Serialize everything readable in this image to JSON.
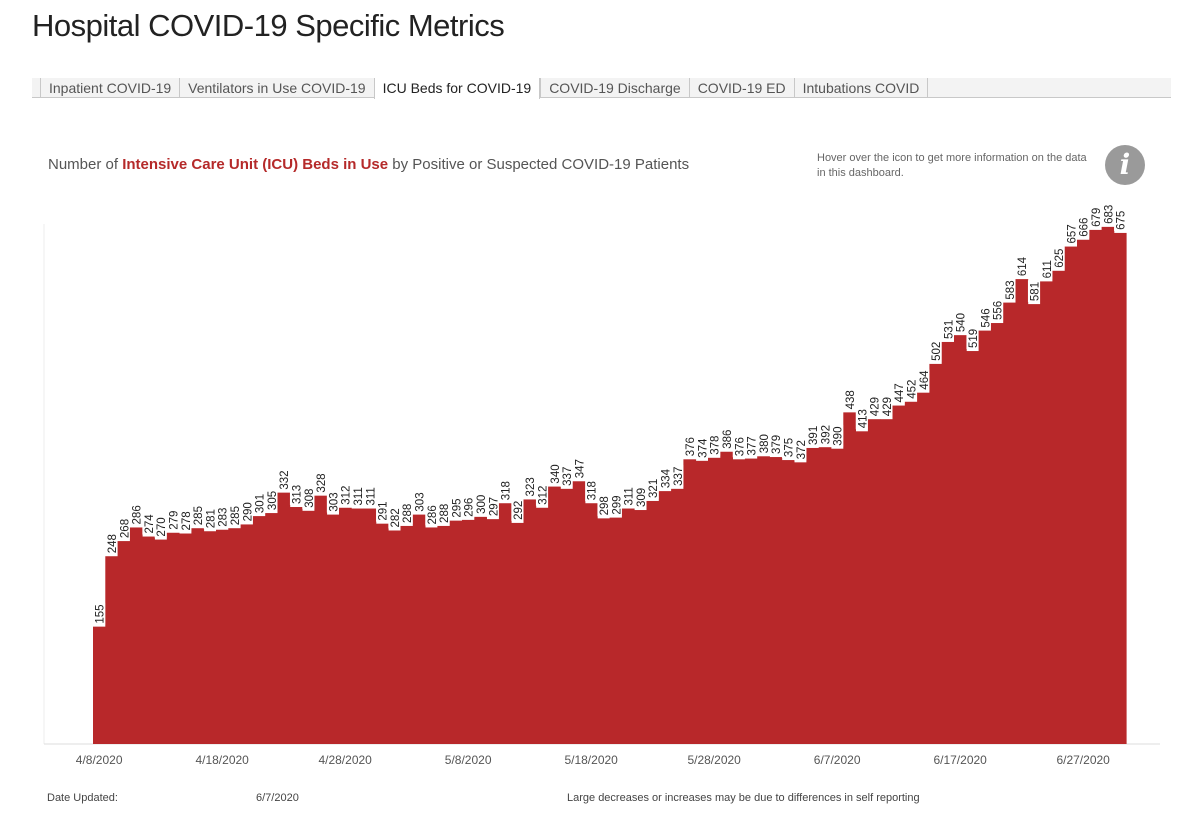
{
  "header": {
    "title": "Hospital COVID-19 Specific Metrics"
  },
  "tabs": [
    {
      "label": "Inpatient COVID-19",
      "active": false
    },
    {
      "label": "Ventilators in Use COVID-19",
      "active": false
    },
    {
      "label": "ICU Beds for COVID-19",
      "active": true
    },
    {
      "label": "COVID-19 Discharge",
      "active": false
    },
    {
      "label": "COVID-19 ED",
      "active": false
    },
    {
      "label": "Intubations COVID",
      "active": false
    }
  ],
  "subtitle": {
    "prefix": "Number of ",
    "highlight": "Intensive Care Unit (ICU) Beds in Use",
    "suffix": " by Positive or Suspected COVID-19 Patients"
  },
  "info": {
    "note": "Hover over the icon to get more information on the data in this dashboard.",
    "icon": "info-icon",
    "icon_glyph": "i"
  },
  "footer": {
    "date_updated_label": "Date Updated:",
    "date_updated_value": "6/7/2020",
    "note": "Large decreases or increases may be due to differences in self reporting"
  },
  "colors": {
    "bar": "#b8282a",
    "highlight_text": "#b52a2a"
  },
  "chart_data": {
    "type": "area",
    "start_date": "4/8/2020",
    "x_tick_labels": [
      "4/8/2020",
      "4/18/2020",
      "4/28/2020",
      "5/8/2020",
      "5/18/2020",
      "5/28/2020",
      "6/7/2020",
      "6/17/2020",
      "6/27/2020"
    ],
    "values": [
      155,
      248,
      268,
      286,
      274,
      270,
      279,
      278,
      285,
      281,
      283,
      285,
      290,
      301,
      305,
      332,
      313,
      308,
      328,
      303,
      312,
      311,
      311,
      291,
      282,
      288,
      303,
      286,
      288,
      295,
      296,
      300,
      297,
      318,
      292,
      323,
      312,
      340,
      337,
      347,
      318,
      298,
      299,
      311,
      309,
      321,
      334,
      337,
      376,
      374,
      378,
      386,
      376,
      377,
      380,
      379,
      375,
      372,
      391,
      392,
      390,
      438,
      413,
      429,
      429,
      447,
      452,
      464,
      502,
      531,
      540,
      519,
      546,
      556,
      583,
      614,
      581,
      611,
      625,
      657,
      666,
      679,
      683,
      675
    ],
    "ylim": [
      0,
      700
    ],
    "grid": false,
    "xlabel": "",
    "ylabel": ""
  }
}
